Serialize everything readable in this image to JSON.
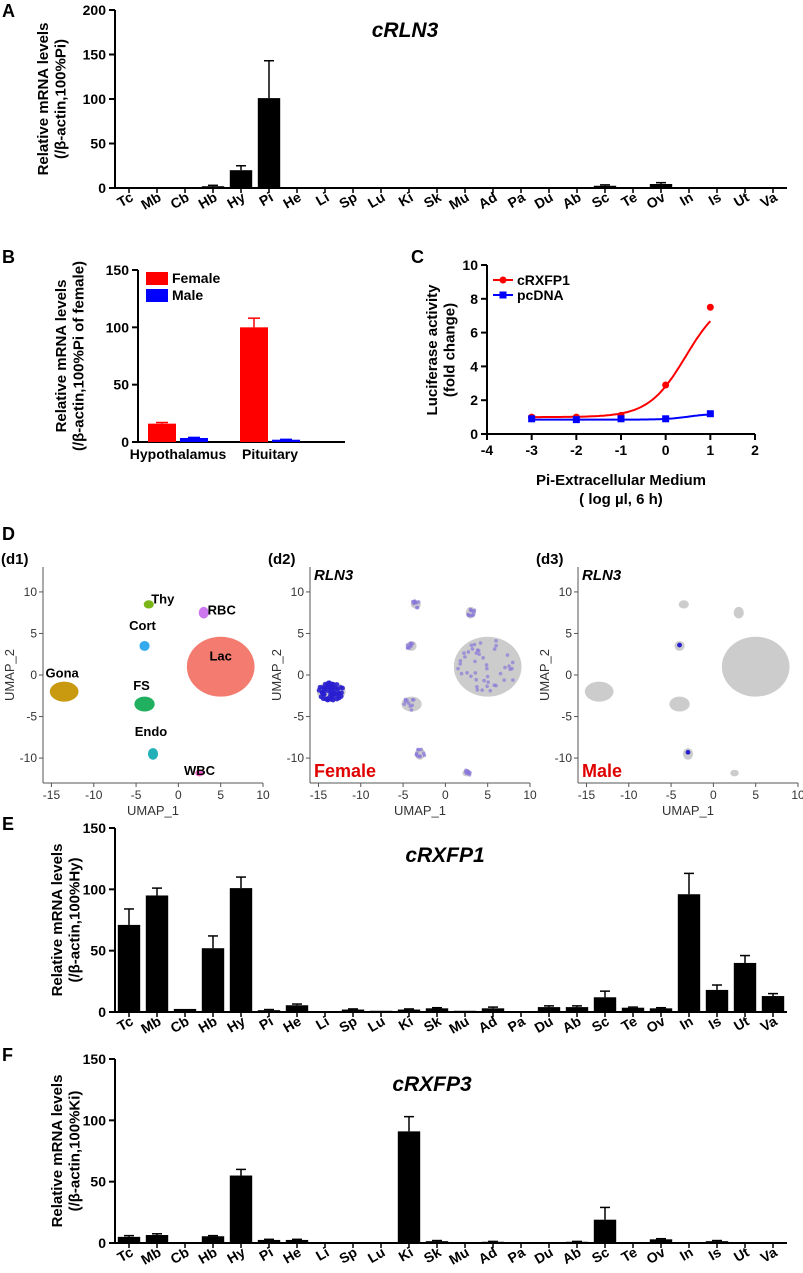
{
  "panel_labels": {
    "A": "A",
    "B": "B",
    "C": "C",
    "D": "D",
    "E": "E",
    "F": "F"
  },
  "chart_data": [
    {
      "id": "A",
      "type": "bar",
      "title": "cRLN3",
      "ylabel": [
        "Relative mRNA levels",
        "(/β-actin,100%Pi)"
      ],
      "ylim": [
        0,
        200
      ],
      "yticks": [
        0,
        50,
        100,
        150,
        200
      ],
      "categories": [
        "Tc",
        "Mb",
        "Cb",
        "Hb",
        "Hy",
        "Pi",
        "He",
        "Li",
        "Sp",
        "Lu",
        "Ki",
        "Sk",
        "Mu",
        "Ad",
        "Pa",
        "Du",
        "Ab",
        "Sc",
        "Te",
        "Ov",
        "In",
        "Is",
        "Ut",
        "Va"
      ],
      "values": [
        0.3,
        0.8,
        0.3,
        2,
        20,
        101,
        0.3,
        0.3,
        0.3,
        0.3,
        0.3,
        0.3,
        0.3,
        0.5,
        0.3,
        0.3,
        0.3,
        2.5,
        0.3,
        4.5,
        0.3,
        0.3,
        0.3,
        0.3
      ],
      "errors": [
        0,
        0,
        0,
        1,
        5,
        42,
        0,
        0,
        0,
        0,
        0,
        0,
        0,
        0,
        0,
        0,
        0,
        1,
        0,
        1.5,
        0,
        0,
        0,
        0
      ]
    },
    {
      "id": "B",
      "type": "bar",
      "title": "",
      "ylabel": [
        "Relative mRNA levels",
        "(/β-actin,100%Pi of female)"
      ],
      "ylim": [
        0,
        150
      ],
      "yticks": [
        0,
        50,
        100,
        150
      ],
      "categories": [
        "Hypothalamus",
        "Pituitary"
      ],
      "series": [
        {
          "name": "Female",
          "color": "#ff0000",
          "values": [
            16,
            100
          ],
          "errors": [
            1,
            8
          ]
        },
        {
          "name": "Male",
          "color": "#0000ff",
          "values": [
            3.5,
            2
          ],
          "errors": [
            0.5,
            0.3
          ]
        }
      ],
      "legend": "top-left"
    },
    {
      "id": "C",
      "type": "line",
      "title": "",
      "ylabel": [
        "Luciferase activity",
        "(fold change)"
      ],
      "xlabel": [
        "Pi-Extracellular Medium",
        "( log µl, 6 h)"
      ],
      "xlim": [
        -4,
        2
      ],
      "xticks": [
        -4,
        -3,
        -2,
        -1,
        0,
        1,
        2
      ],
      "ylim": [
        0,
        10
      ],
      "yticks": [
        0,
        2,
        4,
        6,
        8,
        10
      ],
      "series": [
        {
          "name": "cRXFP1",
          "color": "#ff0000",
          "marker": "circle",
          "x": [
            -3,
            -2,
            -1,
            0,
            1
          ],
          "y": [
            1.0,
            1.0,
            1.1,
            2.9,
            7.5
          ]
        },
        {
          "name": "pcDNA",
          "color": "#0000ff",
          "marker": "square",
          "x": [
            -3,
            -2,
            -1,
            0,
            1
          ],
          "y": [
            0.9,
            0.85,
            0.9,
            0.9,
            1.2
          ]
        }
      ],
      "legend": "top-left"
    },
    {
      "id": "d1",
      "type": "scatter",
      "title": "(d1)",
      "xlabel": "UMAP_1",
      "ylabel": "UMAP_2",
      "xlim": [
        -16,
        10
      ],
      "ylim": [
        -13,
        13
      ],
      "xticks": [
        -15,
        -10,
        -5,
        0,
        5,
        10
      ],
      "yticks": [
        -10,
        -5,
        0,
        5,
        10
      ],
      "clusters": [
        {
          "name": "Thy",
          "color": "#7cb518",
          "cx": -3.5,
          "cy": 8.5,
          "rx": 0.6,
          "ry": 0.5
        },
        {
          "name": "RBC",
          "color": "#cc77ee",
          "cx": 3.0,
          "cy": 7.5,
          "rx": 0.6,
          "ry": 0.7
        },
        {
          "name": "Cort",
          "color": "#33aaee",
          "cx": -4.0,
          "cy": 3.5,
          "rx": 0.6,
          "ry": 0.6
        },
        {
          "name": "Lac",
          "color": "#f47b70",
          "cx": 5.0,
          "cy": 1.0,
          "rx": 4.0,
          "ry": 3.6
        },
        {
          "name": "Gona",
          "color": "#c99a10",
          "cx": -13.5,
          "cy": -2.0,
          "rx": 1.7,
          "ry": 1.2
        },
        {
          "name": "FS",
          "color": "#20b060",
          "cx": -4.0,
          "cy": -3.5,
          "rx": 1.2,
          "ry": 0.9
        },
        {
          "name": "Endo",
          "color": "#22b0b8",
          "cx": -3.0,
          "cy": -9.5,
          "rx": 0.6,
          "ry": 0.7
        },
        {
          "name": "WBC",
          "color": "#f060c8",
          "cx": 2.5,
          "cy": -11.8,
          "rx": 0.5,
          "ry": 0.4
        }
      ]
    },
    {
      "id": "d2",
      "type": "scatter",
      "title": "(d2)",
      "gene": "RLN3",
      "sex": "Female",
      "xlabel": "UMAP_1",
      "ylabel": "UMAP_2"
    },
    {
      "id": "d3",
      "type": "scatter",
      "title": "(d3)",
      "gene": "RLN3",
      "sex": "Male",
      "xlabel": "UMAP_1",
      "ylabel": "UMAP_2"
    },
    {
      "id": "E",
      "type": "bar",
      "title": "cRXFP1",
      "ylabel": [
        "Relative mRNA levels",
        "(/β-actin,100%Hy)"
      ],
      "ylim": [
        0,
        150
      ],
      "yticks": [
        0,
        50,
        100,
        150
      ],
      "categories": [
        "Tc",
        "Mb",
        "Cb",
        "Hb",
        "Hy",
        "Pi",
        "He",
        "Li",
        "Sp",
        "Lu",
        "Ki",
        "Sk",
        "Mu",
        "Ad",
        "Pa",
        "Du",
        "Ab",
        "Sc",
        "Te",
        "Ov",
        "In",
        "Is",
        "Ut",
        "Va"
      ],
      "values": [
        71,
        95,
        2.5,
        52,
        101,
        1.5,
        5.5,
        0.5,
        2,
        1,
        2,
        3,
        1,
        3,
        0.5,
        4,
        4,
        12,
        3.5,
        3,
        96,
        18,
        40,
        13
      ],
      "errors": [
        13,
        6,
        0,
        10,
        9,
        0.5,
        1,
        0,
        0.5,
        0,
        0.5,
        0.5,
        0,
        1,
        0,
        1,
        1,
        5,
        0.5,
        0.5,
        17,
        4,
        6,
        2
      ]
    },
    {
      "id": "F",
      "type": "bar",
      "title": "cRXFP3",
      "ylabel": [
        "Relative mRNA levels",
        "(/β-actin,100%Ki)"
      ],
      "ylim": [
        0,
        150
      ],
      "yticks": [
        0,
        50,
        100,
        150
      ],
      "categories": [
        "Tc",
        "Mb",
        "Cb",
        "Hb",
        "Hy",
        "Pi",
        "He",
        "Li",
        "Sp",
        "Lu",
        "Ki",
        "Sk",
        "Mu",
        "Ad",
        "Pa",
        "Du",
        "Ab",
        "Sc",
        "Te",
        "Ov",
        "In",
        "Is",
        "Ut",
        "Va"
      ],
      "values": [
        5,
        6.5,
        0.5,
        5.5,
        55,
        2.5,
        2.5,
        0.5,
        0.5,
        0.5,
        91,
        1.5,
        0.5,
        1,
        0.5,
        0.5,
        1,
        19,
        0.5,
        3,
        0.5,
        1.5,
        0.5,
        0.5
      ],
      "errors": [
        1,
        1,
        0,
        0.5,
        5,
        0.5,
        0.5,
        0,
        0,
        0,
        12,
        0.5,
        0,
        0.3,
        0,
        0,
        0.3,
        10,
        0,
        0.5,
        0,
        0.5,
        0,
        0
      ]
    }
  ]
}
